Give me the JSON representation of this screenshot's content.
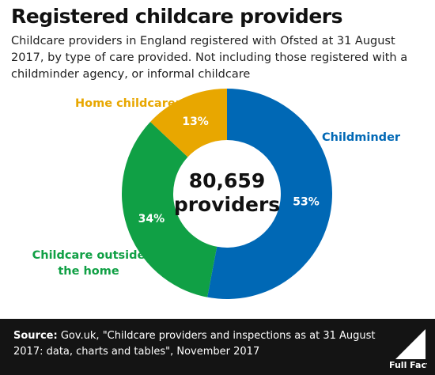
{
  "header": {
    "title": "Registered childcare providers",
    "subtitle": "Childcare providers in England registered with Ofsted at 31 August 2017, by type of care provided. Not including those registered with a childminder agency, or informal childcare"
  },
  "chart_data": {
    "type": "pie",
    "variant": "donut",
    "center_label_line1": "80,659",
    "center_label_line2": "providers",
    "slices": [
      {
        "name": "Childminder",
        "value": 53,
        "label": "53%",
        "color": "#0068b5"
      },
      {
        "name": "Childcare outside the home",
        "value": 34,
        "label": "34%",
        "color": "#10a045"
      },
      {
        "name": "Home childcarer",
        "value": 13,
        "label": "13%",
        "color": "#e8a700"
      }
    ]
  },
  "labels": {
    "home_childcarer": "Home childcarer",
    "childminder": "Childminder",
    "outside_line1": "Childcare outside",
    "outside_line2": "the home"
  },
  "footer": {
    "source_label": "Source:",
    "source_text": " Gov.uk, \"Childcare providers and inspections as at 31 August 2017: data, charts and tables\", November 2017",
    "logo_text": "Full Fact"
  }
}
